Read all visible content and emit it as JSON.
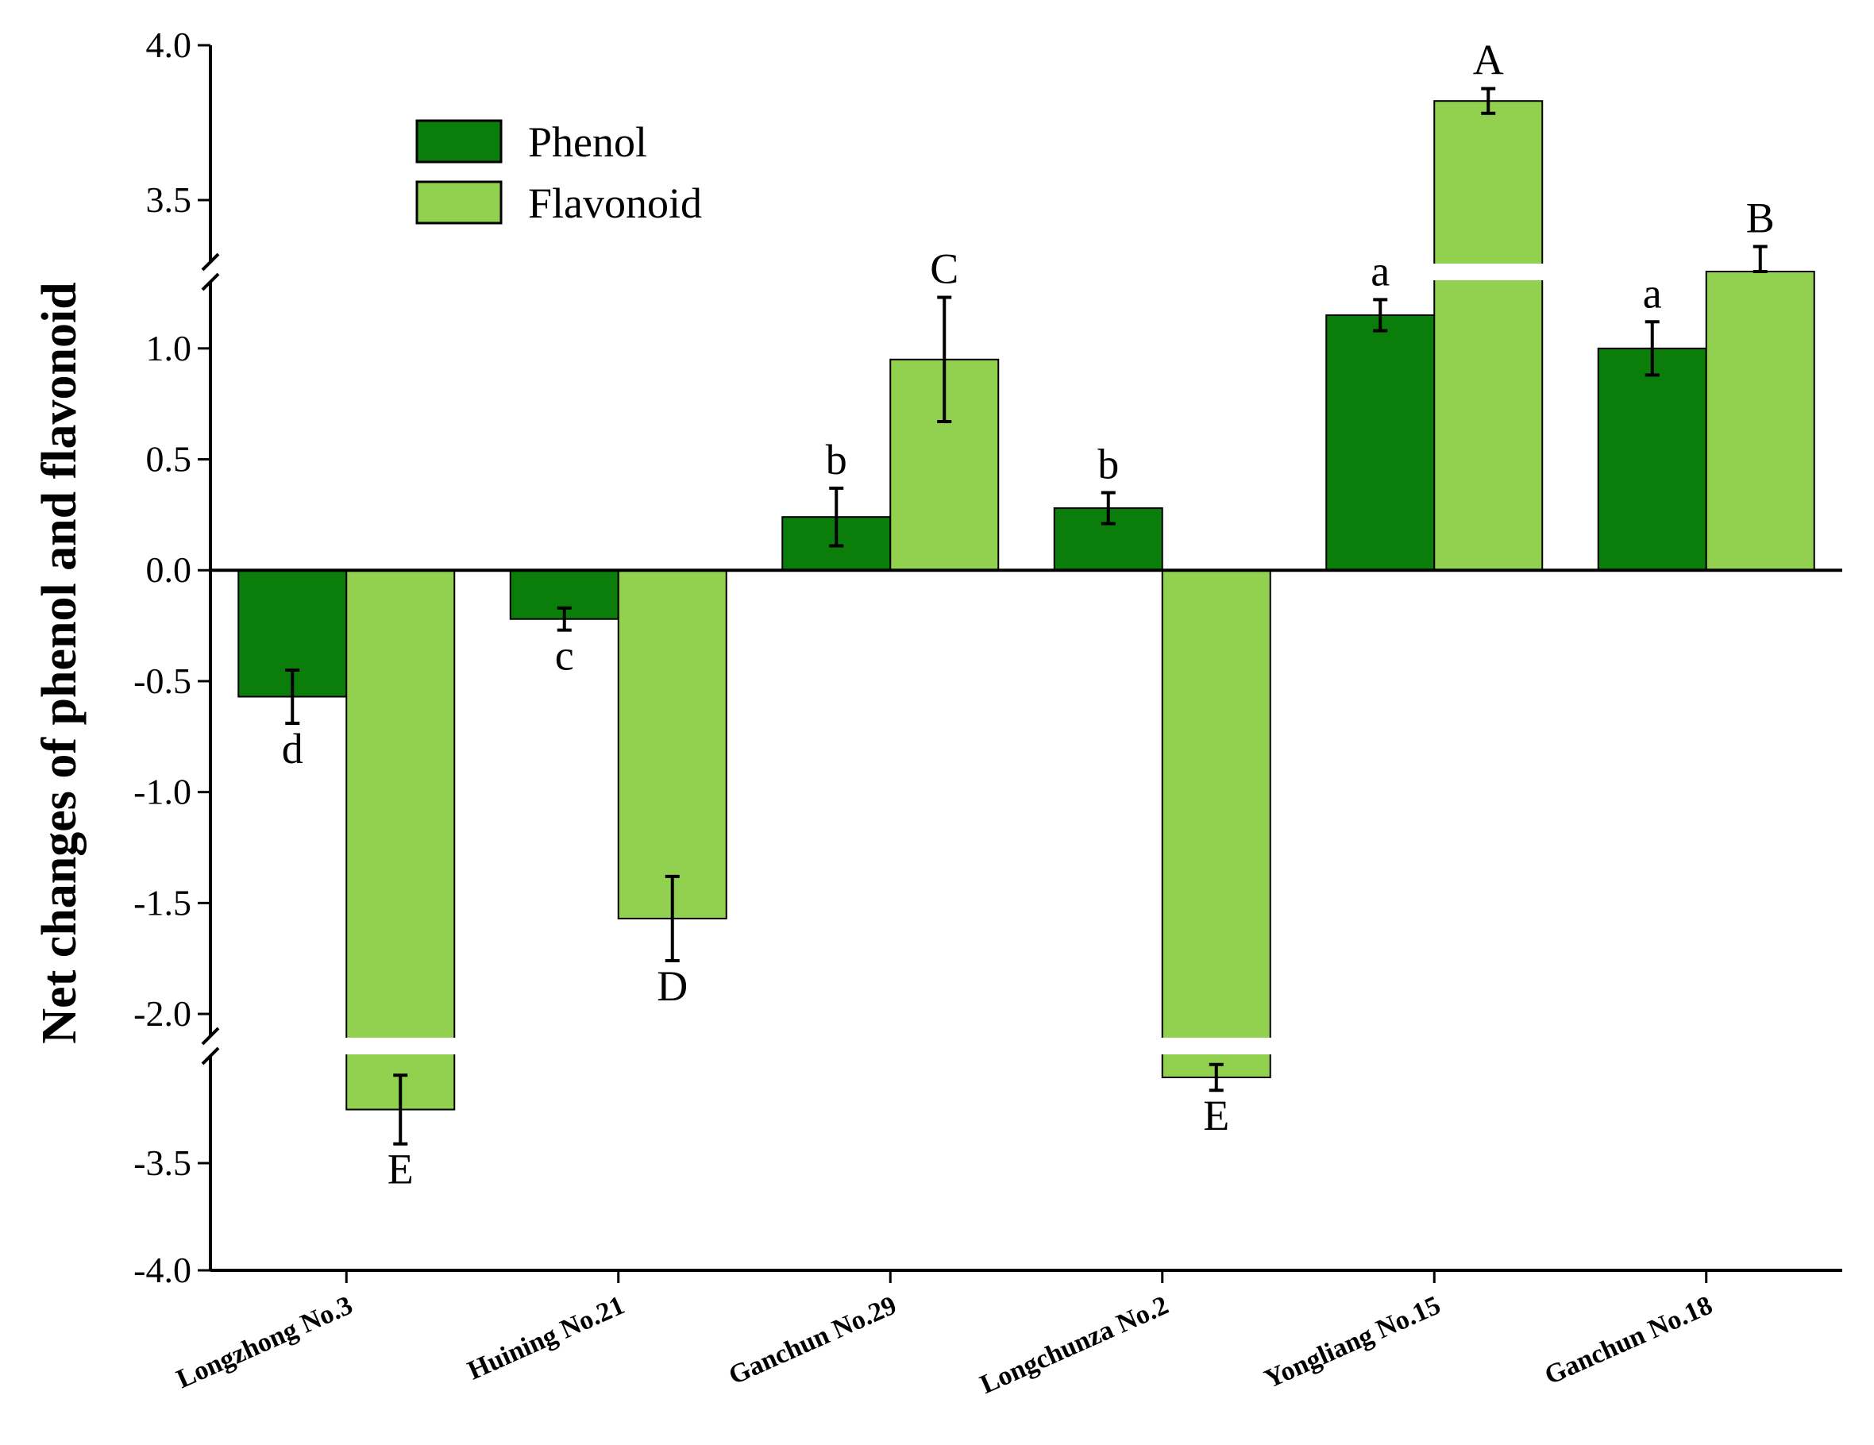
{
  "chart_data": {
    "type": "bar",
    "title": "",
    "xlabel": "",
    "ylabel": "Net changes of phenol and flavonoid",
    "ylim": [
      -4.0,
      4.0
    ],
    "axis_breaks": [
      [
        1.3,
        3.3
      ],
      [
        -2.1,
        -3.0
      ]
    ],
    "y_ticks": [
      {
        "value": 4.0,
        "label": "4.0"
      },
      {
        "value": 3.5,
        "label": "3.5"
      },
      {
        "value": 1.0,
        "label": "1.0"
      },
      {
        "value": 0.5,
        "label": "0.5"
      },
      {
        "value": 0.0,
        "label": "0.0"
      },
      {
        "value": -0.5,
        "label": "-0.5"
      },
      {
        "value": -1.0,
        "label": "-1.0"
      },
      {
        "value": -1.5,
        "label": "-1.5"
      },
      {
        "value": -2.0,
        "label": "-2.0"
      },
      {
        "value": -3.5,
        "label": "-3.5"
      },
      {
        "value": -4.0,
        "label": "-4.0"
      }
    ],
    "categories": [
      "Longzhong No.3",
      "Huining No.21",
      "Ganchun No.29",
      "Longchunza No.2",
      "Yongliang No.15",
      "Ganchun No.18"
    ],
    "series": [
      {
        "name": "Phenol",
        "color": "#0b7d0b",
        "values": [
          -0.57,
          -0.22,
          0.24,
          0.28,
          1.15,
          1.0
        ],
        "errors": [
          0.12,
          0.05,
          0.13,
          0.07,
          0.07,
          0.12
        ],
        "letters": [
          "d",
          "c",
          "b",
          "b",
          "a",
          "a"
        ]
      },
      {
        "name": "Flavonoid",
        "color": "#92d050",
        "values": [
          -3.25,
          -1.57,
          0.95,
          -3.1,
          3.82,
          3.2
        ],
        "errors": [
          0.16,
          0.19,
          0.28,
          0.06,
          0.04,
          0.15
        ],
        "letters": [
          "E",
          "D",
          "C",
          "E",
          "A",
          "B"
        ]
      }
    ],
    "legend": {
      "position": "top-left",
      "entries": [
        "Phenol",
        "Flavonoid"
      ]
    }
  }
}
